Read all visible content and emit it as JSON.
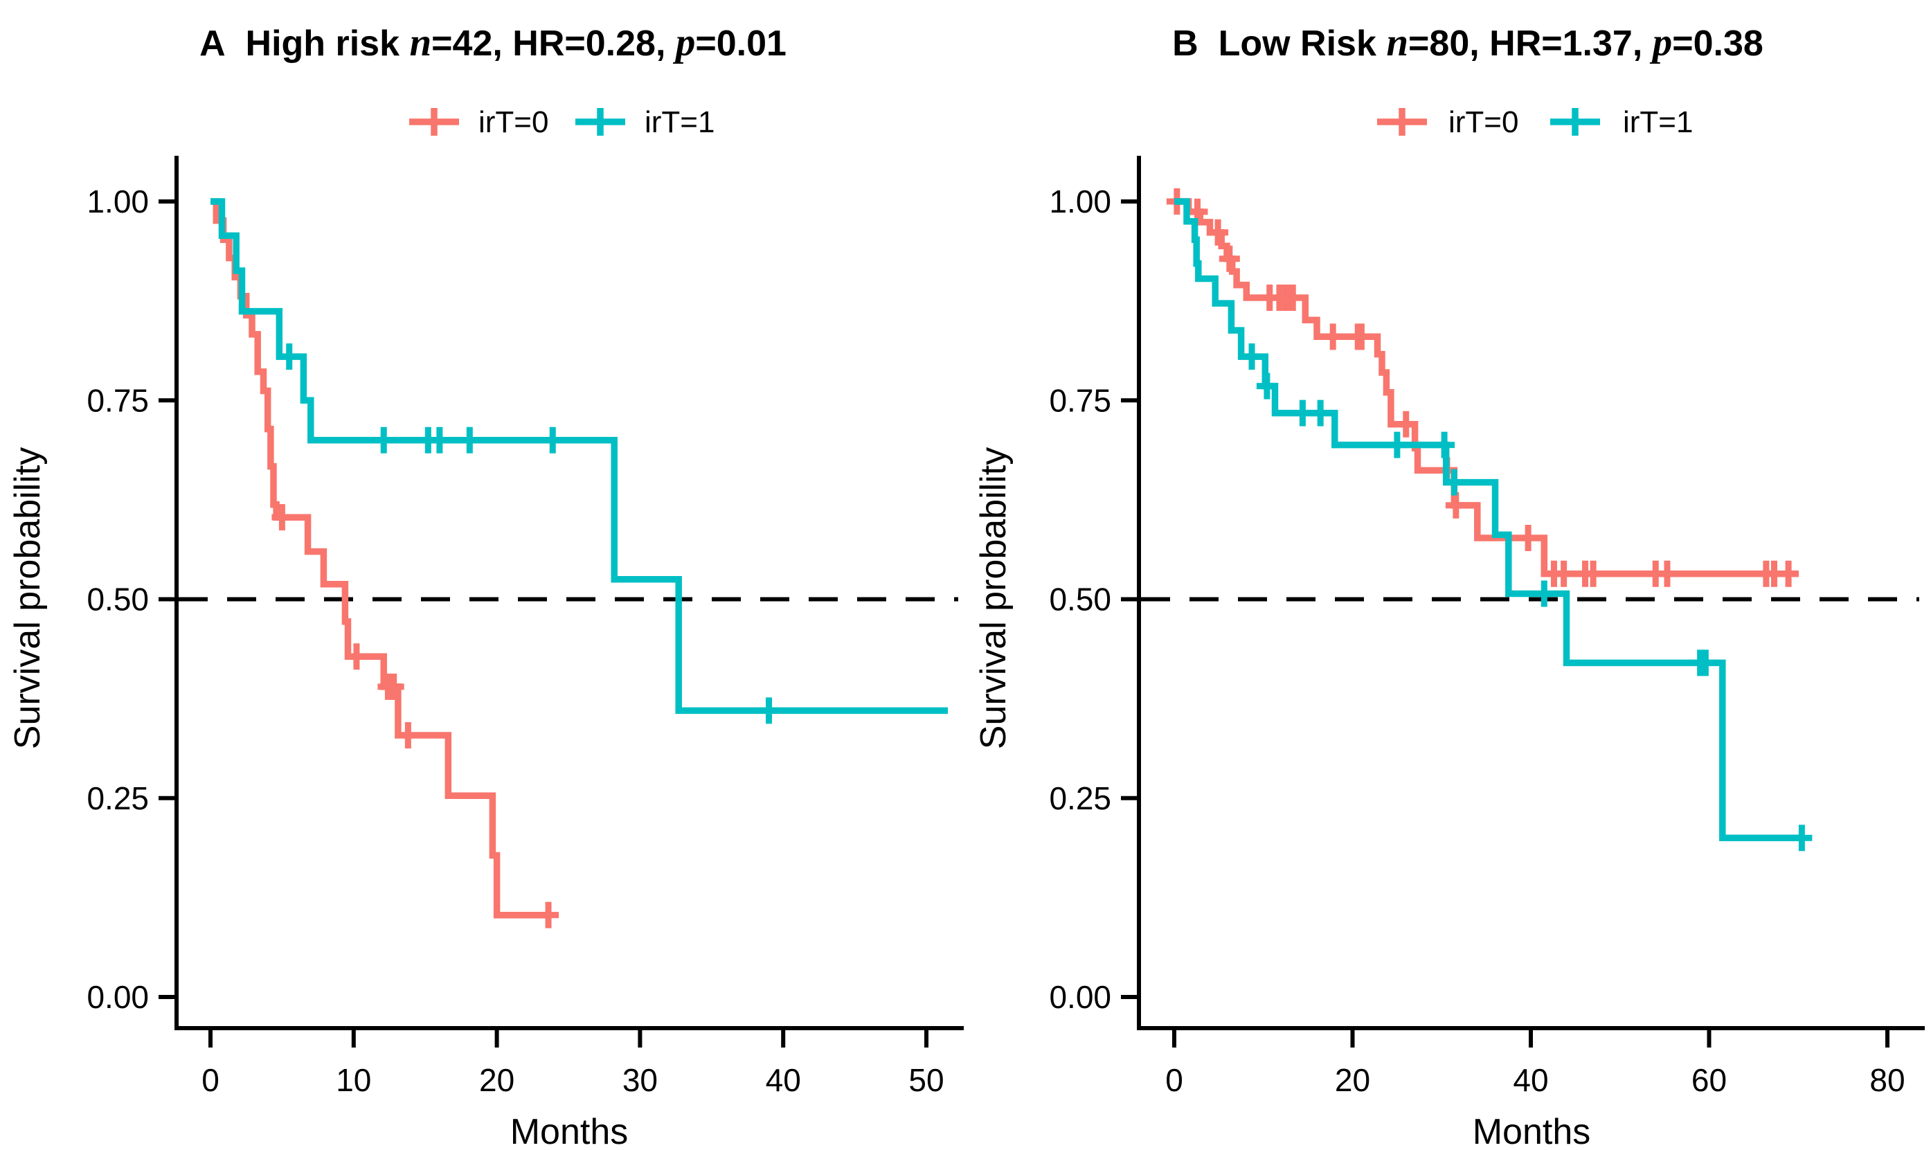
{
  "figure": {
    "background": "#ffffff",
    "axis_color": "#000000",
    "reference_line_style": "dashed",
    "reference_line_value": 0.5
  },
  "legend": {
    "items": [
      {
        "label": "irT=0",
        "color": "#F8766D"
      },
      {
        "label": "irT=1",
        "color": "#00BFC4"
      }
    ]
  },
  "chart_data": {
    "type": "line",
    "subtype": "kaplan-meier-step",
    "grid": false,
    "legend_position": "top-center",
    "panels": [
      {
        "panel_label": "A",
        "group": "High risk",
        "stats": {
          "n": "42",
          "HR": "0.28",
          "p": "0.01"
        },
        "title_parts": [
          {
            "text": "A",
            "style": "bold"
          },
          {
            "text": "  High risk ",
            "style": "bold"
          },
          {
            "text": "n",
            "style": "bold-italic-serif"
          },
          {
            "text": "=42, HR=0.28, ",
            "style": "bold"
          },
          {
            "text": "p",
            "style": "bold-italic-serif"
          },
          {
            "text": "=0.01",
            "style": "bold"
          }
        ],
        "xlabel": "Months",
        "ylabel": "Survival probability",
        "xlim": [
          0,
          52.6
        ],
        "ylim": [
          0,
          1
        ],
        "xticks": [
          0,
          10,
          20,
          30,
          40,
          50
        ],
        "yticks": [
          {
            "value": 1.0,
            "label": "1.00"
          },
          {
            "value": 0.75,
            "label": "0.75"
          },
          {
            "value": 0.5,
            "label": "0.50"
          },
          {
            "value": 0.25,
            "label": "0.25"
          },
          {
            "value": 0.0,
            "label": "0.00"
          }
        ],
        "reference_line": 0.5,
        "series": [
          {
            "name": "irT=0",
            "color": "#F8766D",
            "steps": [
              [
                0,
                1.0
              ],
              [
                0.4,
                0.976
              ],
              [
                0.9,
                0.952
              ],
              [
                1.3,
                0.929
              ],
              [
                1.7,
                0.905
              ],
              [
                2.1,
                0.881
              ],
              [
                2.5,
                0.857
              ],
              [
                2.9,
                0.833
              ],
              [
                3.3,
                0.786
              ],
              [
                3.7,
                0.762
              ],
              [
                4.0,
                0.714
              ],
              [
                4.2,
                0.667
              ],
              [
                4.4,
                0.619
              ],
              [
                4.6,
                0.603
              ],
              [
                6.8,
                0.56
              ],
              [
                7.9,
                0.519
              ],
              [
                9.4,
                0.472
              ],
              [
                9.6,
                0.428
              ],
              [
                12.1,
                0.39
              ],
              [
                13.1,
                0.329
              ],
              [
                16.6,
                0.253
              ],
              [
                19.7,
                0.178
              ],
              [
                20.0,
                0.103
              ],
              [
                23.8,
                0.103
              ]
            ],
            "censors": [
              [
                5.0,
                0.603
              ],
              [
                10.2,
                0.428
              ],
              [
                12.4,
                0.39
              ],
              [
                12.8,
                0.39
              ],
              [
                13.8,
                0.329
              ],
              [
                23.6,
                0.103
              ]
            ]
          },
          {
            "name": "irT=1",
            "color": "#00BFC4",
            "steps": [
              [
                0,
                1.0
              ],
              [
                0.8,
                0.957
              ],
              [
                1.8,
                0.913
              ],
              [
                2.2,
                0.862
              ],
              [
                4.8,
                0.805
              ],
              [
                6.5,
                0.75
              ],
              [
                7.0,
                0.7
              ],
              [
                28.2,
                0.525
              ],
              [
                32.7,
                0.36
              ],
              [
                51.5,
                0.36
              ]
            ],
            "censors": [
              [
                5.5,
                0.805
              ],
              [
                12.1,
                0.7
              ],
              [
                15.2,
                0.7
              ],
              [
                16.0,
                0.7
              ],
              [
                18.1,
                0.7
              ],
              [
                23.9,
                0.7
              ],
              [
                39.0,
                0.36
              ]
            ]
          }
        ]
      },
      {
        "panel_label": "B",
        "group": "Low Risk",
        "stats": {
          "n": "80",
          "HR": "1.37",
          "p": "0.38"
        },
        "title_parts": [
          {
            "text": "B",
            "style": "bold"
          },
          {
            "text": "  Low Risk ",
            "style": "bold"
          },
          {
            "text": "n",
            "style": "bold-italic-serif"
          },
          {
            "text": "=80, HR=1.37, ",
            "style": "bold"
          },
          {
            "text": "p",
            "style": "bold-italic-serif"
          },
          {
            "text": "=0.38",
            "style": "bold"
          }
        ],
        "xlabel": "Months",
        "ylabel": "Survival probability",
        "xlim": [
          0,
          84
        ],
        "ylim": [
          0,
          1
        ],
        "xticks": [
          0,
          20,
          40,
          60,
          80
        ],
        "yticks": [
          {
            "value": 1.0,
            "label": "1.00"
          },
          {
            "value": 0.75,
            "label": "0.75"
          },
          {
            "value": 0.5,
            "label": "0.50"
          },
          {
            "value": 0.25,
            "label": "0.25"
          },
          {
            "value": 0.0,
            "label": "0.00"
          }
        ],
        "reference_line": 0.5,
        "series": [
          {
            "name": "irT=0",
            "color": "#F8766D",
            "steps": [
              [
                0,
                1.0
              ],
              [
                1.6,
                0.987
              ],
              [
                2.9,
                0.974
              ],
              [
                4.0,
                0.961
              ],
              [
                5.3,
                0.944
              ],
              [
                5.9,
                0.928
              ],
              [
                6.5,
                0.912
              ],
              [
                7.0,
                0.895
              ],
              [
                8.1,
                0.879
              ],
              [
                14.7,
                0.851
              ],
              [
                16.0,
                0.83
              ],
              [
                22.8,
                0.808
              ],
              [
                23.3,
                0.785
              ],
              [
                23.8,
                0.76
              ],
              [
                24.3,
                0.72
              ],
              [
                27.0,
                0.69
              ],
              [
                27.3,
                0.662
              ],
              [
                31.4,
                0.618
              ],
              [
                34.0,
                0.577
              ],
              [
                41.5,
                0.532
              ],
              [
                70.0,
                0.532
              ]
            ],
            "censors": [
              [
                0.3,
                1.0
              ],
              [
                2.6,
                0.987
              ],
              [
                4.9,
                0.961
              ],
              [
                6.2,
                0.928
              ],
              [
                10.7,
                0.879
              ],
              [
                11.8,
                0.879
              ],
              [
                12.5,
                0.879
              ],
              [
                12.9,
                0.879
              ],
              [
                13.3,
                0.879
              ],
              [
                17.8,
                0.83
              ],
              [
                20.6,
                0.83
              ],
              [
                21.0,
                0.83
              ],
              [
                26.0,
                0.72
              ],
              [
                30.6,
                0.662
              ],
              [
                31.6,
                0.618
              ],
              [
                39.7,
                0.577
              ],
              [
                42.6,
                0.532
              ],
              [
                43.7,
                0.532
              ],
              [
                46.1,
                0.532
              ],
              [
                47.0,
                0.532
              ],
              [
                54.0,
                0.532
              ],
              [
                55.3,
                0.532
              ],
              [
                66.4,
                0.532
              ],
              [
                67.3,
                0.532
              ],
              [
                68.9,
                0.532
              ]
            ]
          },
          {
            "name": "irT=1",
            "color": "#00BFC4",
            "steps": [
              [
                0,
                1.0
              ],
              [
                1.4,
                0.975
              ],
              [
                2.3,
                0.952
              ],
              [
                2.5,
                0.922
              ],
              [
                2.7,
                0.903
              ],
              [
                4.6,
                0.872
              ],
              [
                6.4,
                0.838
              ],
              [
                7.5,
                0.805
              ],
              [
                10.2,
                0.768
              ],
              [
                11.3,
                0.734
              ],
              [
                18.0,
                0.694
              ],
              [
                30.5,
                0.647
              ],
              [
                36.0,
                0.581
              ],
              [
                37.5,
                0.507
              ],
              [
                44.0,
                0.42
              ],
              [
                61.5,
                0.2
              ],
              [
                70.7,
                0.2
              ]
            ],
            "censors": [
              [
                8.7,
                0.805
              ],
              [
                10.4,
                0.768
              ],
              [
                14.4,
                0.734
              ],
              [
                16.4,
                0.734
              ],
              [
                25.0,
                0.694
              ],
              [
                30.3,
                0.694
              ],
              [
                31.4,
                0.647
              ],
              [
                41.5,
                0.507
              ],
              [
                59.0,
                0.42
              ],
              [
                59.6,
                0.42
              ],
              [
                70.4,
                0.2
              ]
            ]
          }
        ]
      }
    ]
  }
}
